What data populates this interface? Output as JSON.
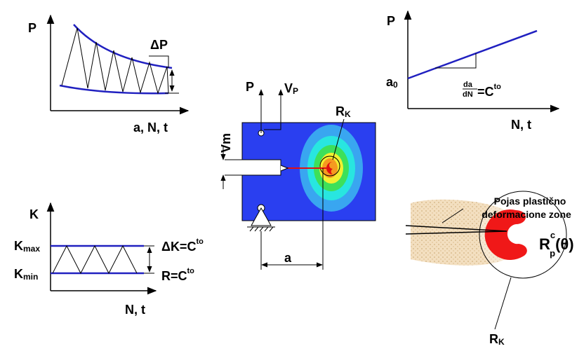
{
  "top_left_plot": {
    "y_label": "P",
    "amplitude_label": "ΔP",
    "x_label": "a, N, t"
  },
  "top_right_plot": {
    "y_label": "P",
    "intercept": {
      "base": "a",
      "sub": "0"
    },
    "law": {
      "numerator": "da",
      "denominator": "dN",
      "rhs": "=C",
      "exponent": "to"
    },
    "x_label": "N, t"
  },
  "specimen": {
    "load": "P",
    "load_point": {
      "base": "V",
      "sub": "P"
    },
    "radius": {
      "base": "R",
      "sub": "K"
    },
    "opening": "Vm",
    "crack_length": "a"
  },
  "bottom_left_plot": {
    "y_label": "K",
    "k_max": {
      "base": "K",
      "sub": "max"
    },
    "k_min": {
      "base": "K",
      "sub": "min"
    },
    "delta_k": {
      "base": "ΔK=C",
      "sup": "to"
    },
    "ratio": {
      "base": "R=C",
      "sup": "to"
    },
    "x_label": "N, t"
  },
  "crack_tip_zone": {
    "zone_label_lines": [
      "Pojas plastično",
      "deformacione zone"
    ],
    "plastic_radius": {
      "base": "R",
      "sup": "c",
      "sub": "p",
      "arg": "(θ)"
    },
    "radius": {
      "base": "R",
      "sub": "K"
    }
  }
}
